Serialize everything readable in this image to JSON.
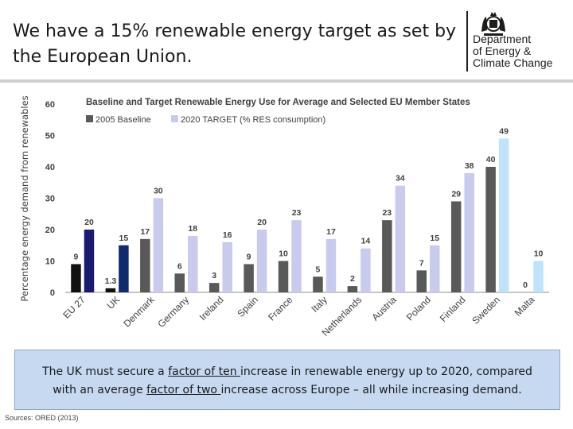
{
  "slide": {
    "title": "We have a 15% renewable energy target as set by the European Union.",
    "logo_text": "Department\nof Energy &\nClimate Change",
    "note": {
      "part1": "The UK must secure a ",
      "link1": "factor of ten ",
      "part2": "increase in renewable energy up to 2020, compared with an average ",
      "link2": "factor of two ",
      "part3": "increase across Europe – all while increasing demand."
    },
    "source": "Sources: ORED (2013)"
  },
  "chart_data": {
    "type": "bar",
    "title": "Baseline and Target Renewable Energy Use for Average and Selected EU Member States",
    "ylabel": "Percentage energy demand from renewables",
    "xlabel": "",
    "ylim": [
      0,
      60
    ],
    "yticks": [
      "0",
      "10",
      "20",
      "30",
      "40",
      "50",
      "60"
    ],
    "legend_position": "top-left",
    "categories": [
      "EU 27",
      "UK",
      "Denmark",
      "Germany",
      "Ireland",
      "Spain",
      "France",
      "Italy",
      "Netherlands",
      "Austria",
      "Poland",
      "Finland",
      "Sweden",
      "Malta"
    ],
    "series": [
      {
        "name": "2005 Baseline",
        "values": [
          9,
          1.3,
          17,
          6,
          3,
          9,
          10,
          5,
          2,
          23,
          7,
          29,
          40,
          0
        ],
        "labels": [
          "9",
          "1.3",
          "17",
          "6",
          "3",
          "9",
          "10",
          "5",
          "2",
          "23",
          "7",
          "29",
          "40",
          "0"
        ]
      },
      {
        "name": "2020 TARGET (% RES consumption)",
        "values": [
          20,
          15,
          30,
          18,
          16,
          20,
          23,
          17,
          14,
          34,
          15,
          38,
          49,
          10
        ],
        "labels": [
          "20",
          "15",
          "30",
          "18",
          "16",
          "20",
          "23",
          "17",
          "14",
          "34",
          "15",
          "38",
          "49",
          "10"
        ]
      }
    ],
    "colors": {
      "baseline": "#595959",
      "target": "#c9cbee",
      "eu_baseline": "#111111",
      "eu_target": "#1a1a70",
      "uk_baseline": "#111111",
      "uk_target": "#102a6e",
      "sweden_target": "#bfe3fb",
      "malta_target": "#bfe3fb"
    },
    "grid": false
  }
}
